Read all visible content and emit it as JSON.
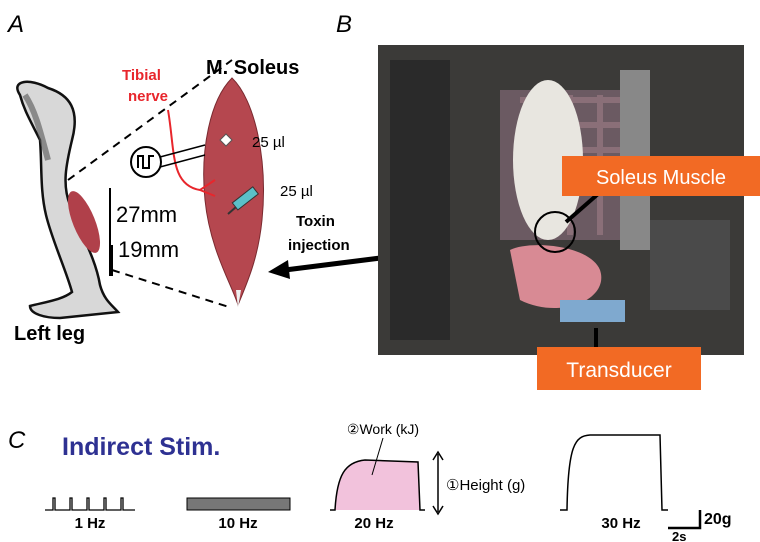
{
  "panels": {
    "a": "A",
    "b": "B",
    "c": "C"
  },
  "panel_a": {
    "muscle_title": "M. Soleus",
    "nerve": [
      "Tibial",
      "nerve"
    ],
    "dose_upper": "25 µl",
    "dose_lower": "25 µl",
    "length_long": "27mm",
    "length_short": "19mm",
    "injection": [
      "Toxin",
      "injection"
    ],
    "leg": "Left leg"
  },
  "panel_b": {
    "callout_muscle": "Soleus Muscle",
    "callout_transducer": "Transducer"
  },
  "panel_c": {
    "title": "Indirect Stim.",
    "work": "②Work (kJ)",
    "height": "①Height (g)",
    "frequencies": [
      "1 Hz",
      "10 Hz",
      "20 Hz",
      "30 Hz"
    ],
    "scale_force": "20g",
    "scale_time": "2s"
  }
}
